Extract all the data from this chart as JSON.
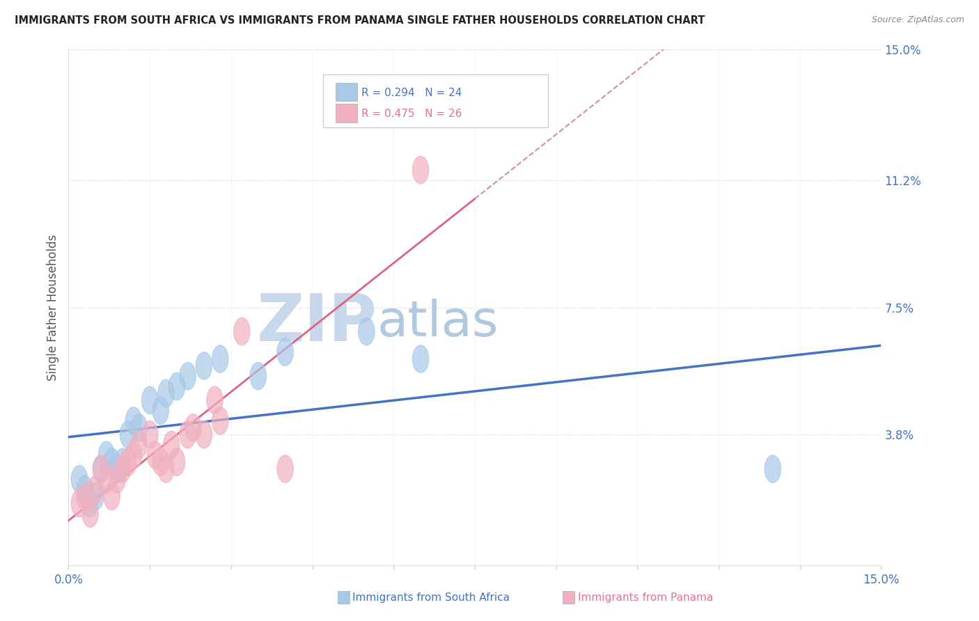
{
  "title": "IMMIGRANTS FROM SOUTH AFRICA VS IMMIGRANTS FROM PANAMA SINGLE FATHER HOUSEHOLDS CORRELATION CHART",
  "source": "Source: ZipAtlas.com",
  "ylabel": "Single Father Households",
  "xlim": [
    0.0,
    0.15
  ],
  "ylim": [
    0.0,
    0.15
  ],
  "ytick_positions_right": [
    0.15,
    0.112,
    0.075,
    0.038
  ],
  "legend_labels": [
    "Immigrants from South Africa",
    "Immigrants from Panama"
  ],
  "legend_R": [
    "R = 0.294",
    "N = 24"
  ],
  "legend_P": [
    "R = 0.475",
    "N = 26"
  ],
  "color_south_africa": "#a8c8e8",
  "color_panama": "#f0b0c0",
  "color_sa_line": "#4472c4",
  "color_pan_line": "#e06080",
  "color_pan_dashed": "#d09090",
  "watermark_zip": "#c8d8e8",
  "watermark_atlas": "#b8c8d8",
  "south_africa_x": [
    0.002,
    0.003,
    0.004,
    0.005,
    0.006,
    0.007,
    0.008,
    0.009,
    0.01,
    0.011,
    0.012,
    0.013,
    0.015,
    0.017,
    0.018,
    0.02,
    0.022,
    0.025,
    0.028,
    0.035,
    0.04,
    0.055,
    0.065,
    0.13
  ],
  "south_africa_y": [
    0.025,
    0.022,
    0.018,
    0.02,
    0.028,
    0.032,
    0.03,
    0.028,
    0.03,
    0.038,
    0.042,
    0.04,
    0.048,
    0.045,
    0.05,
    0.052,
    0.055,
    0.058,
    0.06,
    0.055,
    0.062,
    0.068,
    0.06,
    0.028
  ],
  "panama_x": [
    0.002,
    0.003,
    0.004,
    0.005,
    0.006,
    0.007,
    0.008,
    0.009,
    0.01,
    0.011,
    0.012,
    0.013,
    0.015,
    0.016,
    0.017,
    0.018,
    0.019,
    0.02,
    0.022,
    0.023,
    0.025,
    0.027,
    0.028,
    0.032,
    0.04,
    0.065
  ],
  "panama_y": [
    0.018,
    0.02,
    0.015,
    0.022,
    0.028,
    0.025,
    0.02,
    0.025,
    0.028,
    0.03,
    0.032,
    0.035,
    0.038,
    0.032,
    0.03,
    0.028,
    0.035,
    0.03,
    0.038,
    0.04,
    0.038,
    0.048,
    0.042,
    0.068,
    0.028,
    0.115
  ]
}
